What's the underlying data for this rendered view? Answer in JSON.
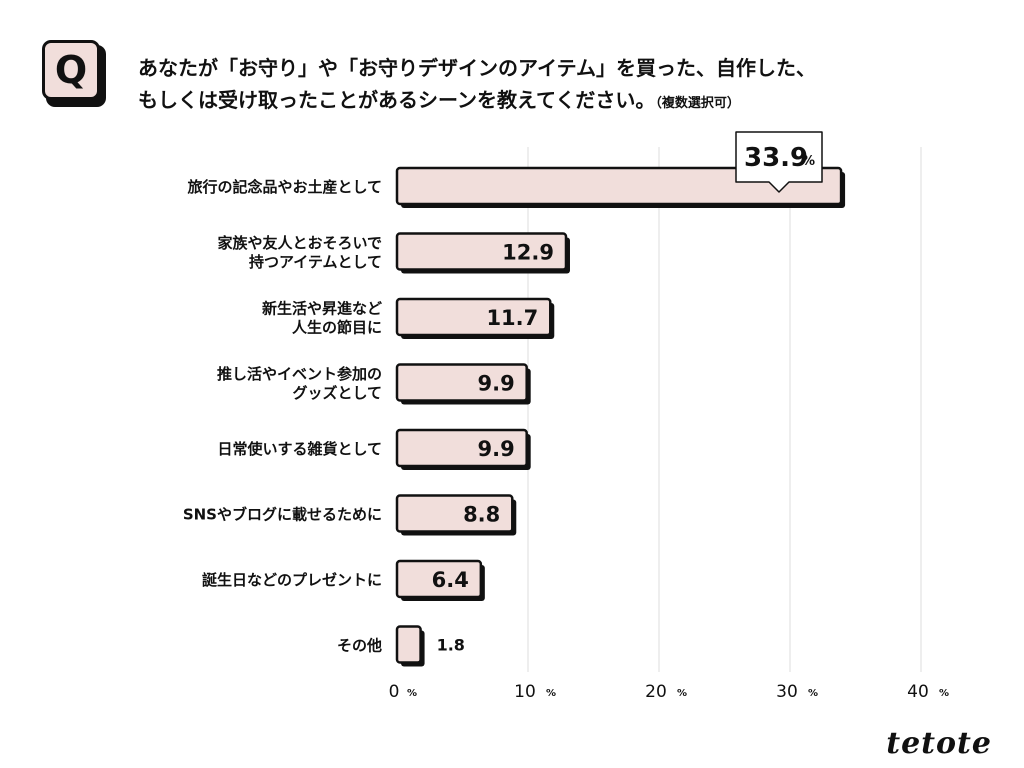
{
  "question": {
    "badge": "Q",
    "line1": "あなたが「お守り」や「お守りデザインのアイテム」を買った、自作した、",
    "line2": "もしくは受け取ったことがあるシーンを教えてください。",
    "note": "（複数選択可）"
  },
  "chart_data": {
    "type": "bar",
    "orientation": "horizontal",
    "categories": [
      [
        "旅行の記念品やお土産として"
      ],
      [
        "家族や友人とおそろいで",
        "持つアイテムとして"
      ],
      [
        "新生活や昇進など",
        "人生の節目に"
      ],
      [
        "推し活やイベント参加の",
        "グッズとして"
      ],
      [
        "日常使いする雑貨として"
      ],
      [
        "SNSやブログに載せるために"
      ],
      [
        "誕生日などのプレゼントに"
      ],
      [
        "その他"
      ]
    ],
    "values": [
      33.9,
      12.9,
      11.7,
      9.9,
      9.9,
      8.8,
      6.4,
      1.8
    ],
    "value_labels": [
      "33.9",
      "12.9",
      "11.7",
      "9.9",
      "9.9",
      "8.8",
      "6.4",
      "1.8"
    ],
    "unit": "%",
    "xlim": [
      0,
      40
    ],
    "x_ticks": [
      0,
      10,
      20,
      30,
      40
    ],
    "x_tick_labels": [
      "0",
      "10",
      "20",
      "30",
      "40"
    ],
    "grid": true,
    "colors": {
      "bar": "#f1dedb",
      "outline": "#111111",
      "shadow": "#111111",
      "grid": "#dddddd"
    }
  },
  "brand": {
    "logo": "tetote"
  }
}
